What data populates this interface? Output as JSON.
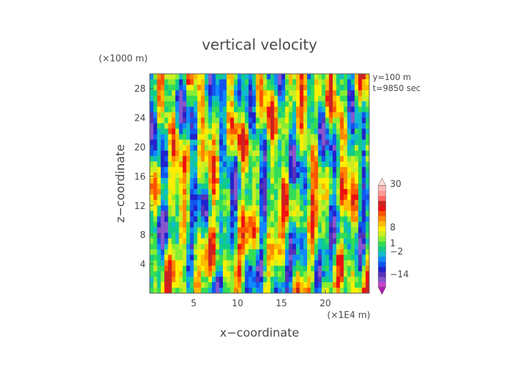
{
  "chart_data": {
    "type": "heatmap",
    "title": "vertical velocity",
    "xlabel": "x−coordinate",
    "ylabel": "z−coordinate",
    "x_unit": "(×1E4 m)",
    "y_unit": "(×1000 m)",
    "annotations": [
      "y=100 m",
      "t=9850 sec"
    ],
    "x_ticks": [
      5,
      10,
      15,
      20
    ],
    "y_ticks": [
      4,
      8,
      12,
      16,
      20,
      24,
      28
    ],
    "xlim": [
      0,
      25
    ],
    "ylim": [
      0,
      30
    ],
    "colorbar": {
      "tick_labels": [
        "30",
        "8",
        "1",
        "−2",
        "−14"
      ],
      "colors": [
        "#b01ab0",
        "#cc44cc",
        "#8855cc",
        "#5533bb",
        "#2222cc",
        "#1155ee",
        "#1188ff",
        "#11bbcc",
        "#11cc88",
        "#33dd55",
        "#88ee33",
        "#ccee22",
        "#ffee00",
        "#ffbb00",
        "#ff8800",
        "#ff5500",
        "#ee1111",
        "#cc2222",
        "#ff6666",
        "#ff9999",
        "#ffbbbb",
        "#ffdddd"
      ]
    }
  }
}
